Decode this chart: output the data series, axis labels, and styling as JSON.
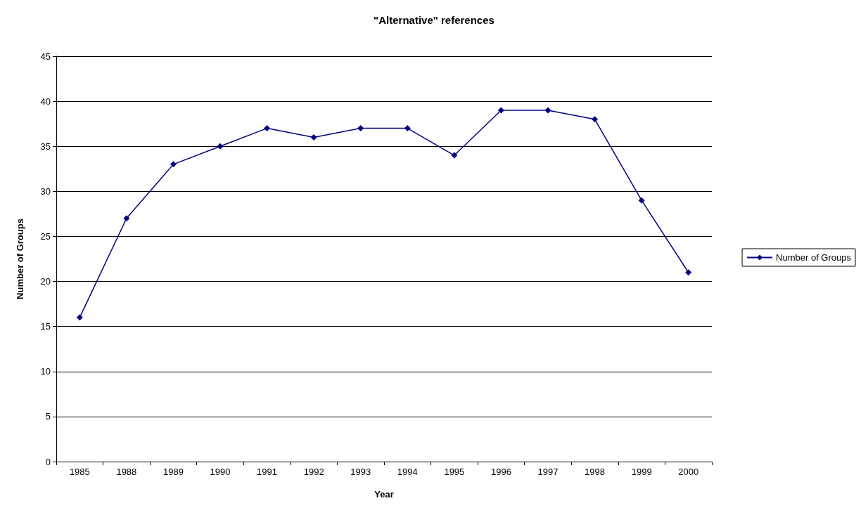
{
  "chart_data": {
    "type": "line",
    "title": "\"Alternative\" references",
    "xlabel": "Year",
    "ylabel": "Number of Groups",
    "categories": [
      "1985",
      "1988",
      "1989",
      "1990",
      "1991",
      "1992",
      "1993",
      "1994",
      "1995",
      "1996",
      "1997",
      "1998",
      "1999",
      "2000"
    ],
    "series": [
      {
        "name": "Number of Groups",
        "color": "#000080",
        "values": [
          16,
          27,
          33,
          35,
          37,
          36,
          37,
          37,
          34,
          39,
          39,
          38,
          29,
          21
        ]
      }
    ],
    "ylim": [
      0,
      45
    ],
    "yticks": [
      0,
      5,
      10,
      15,
      20,
      25,
      30,
      35,
      40,
      45
    ],
    "grid": "y",
    "legend": "right",
    "marker": "diamond",
    "line_style": "solid"
  }
}
